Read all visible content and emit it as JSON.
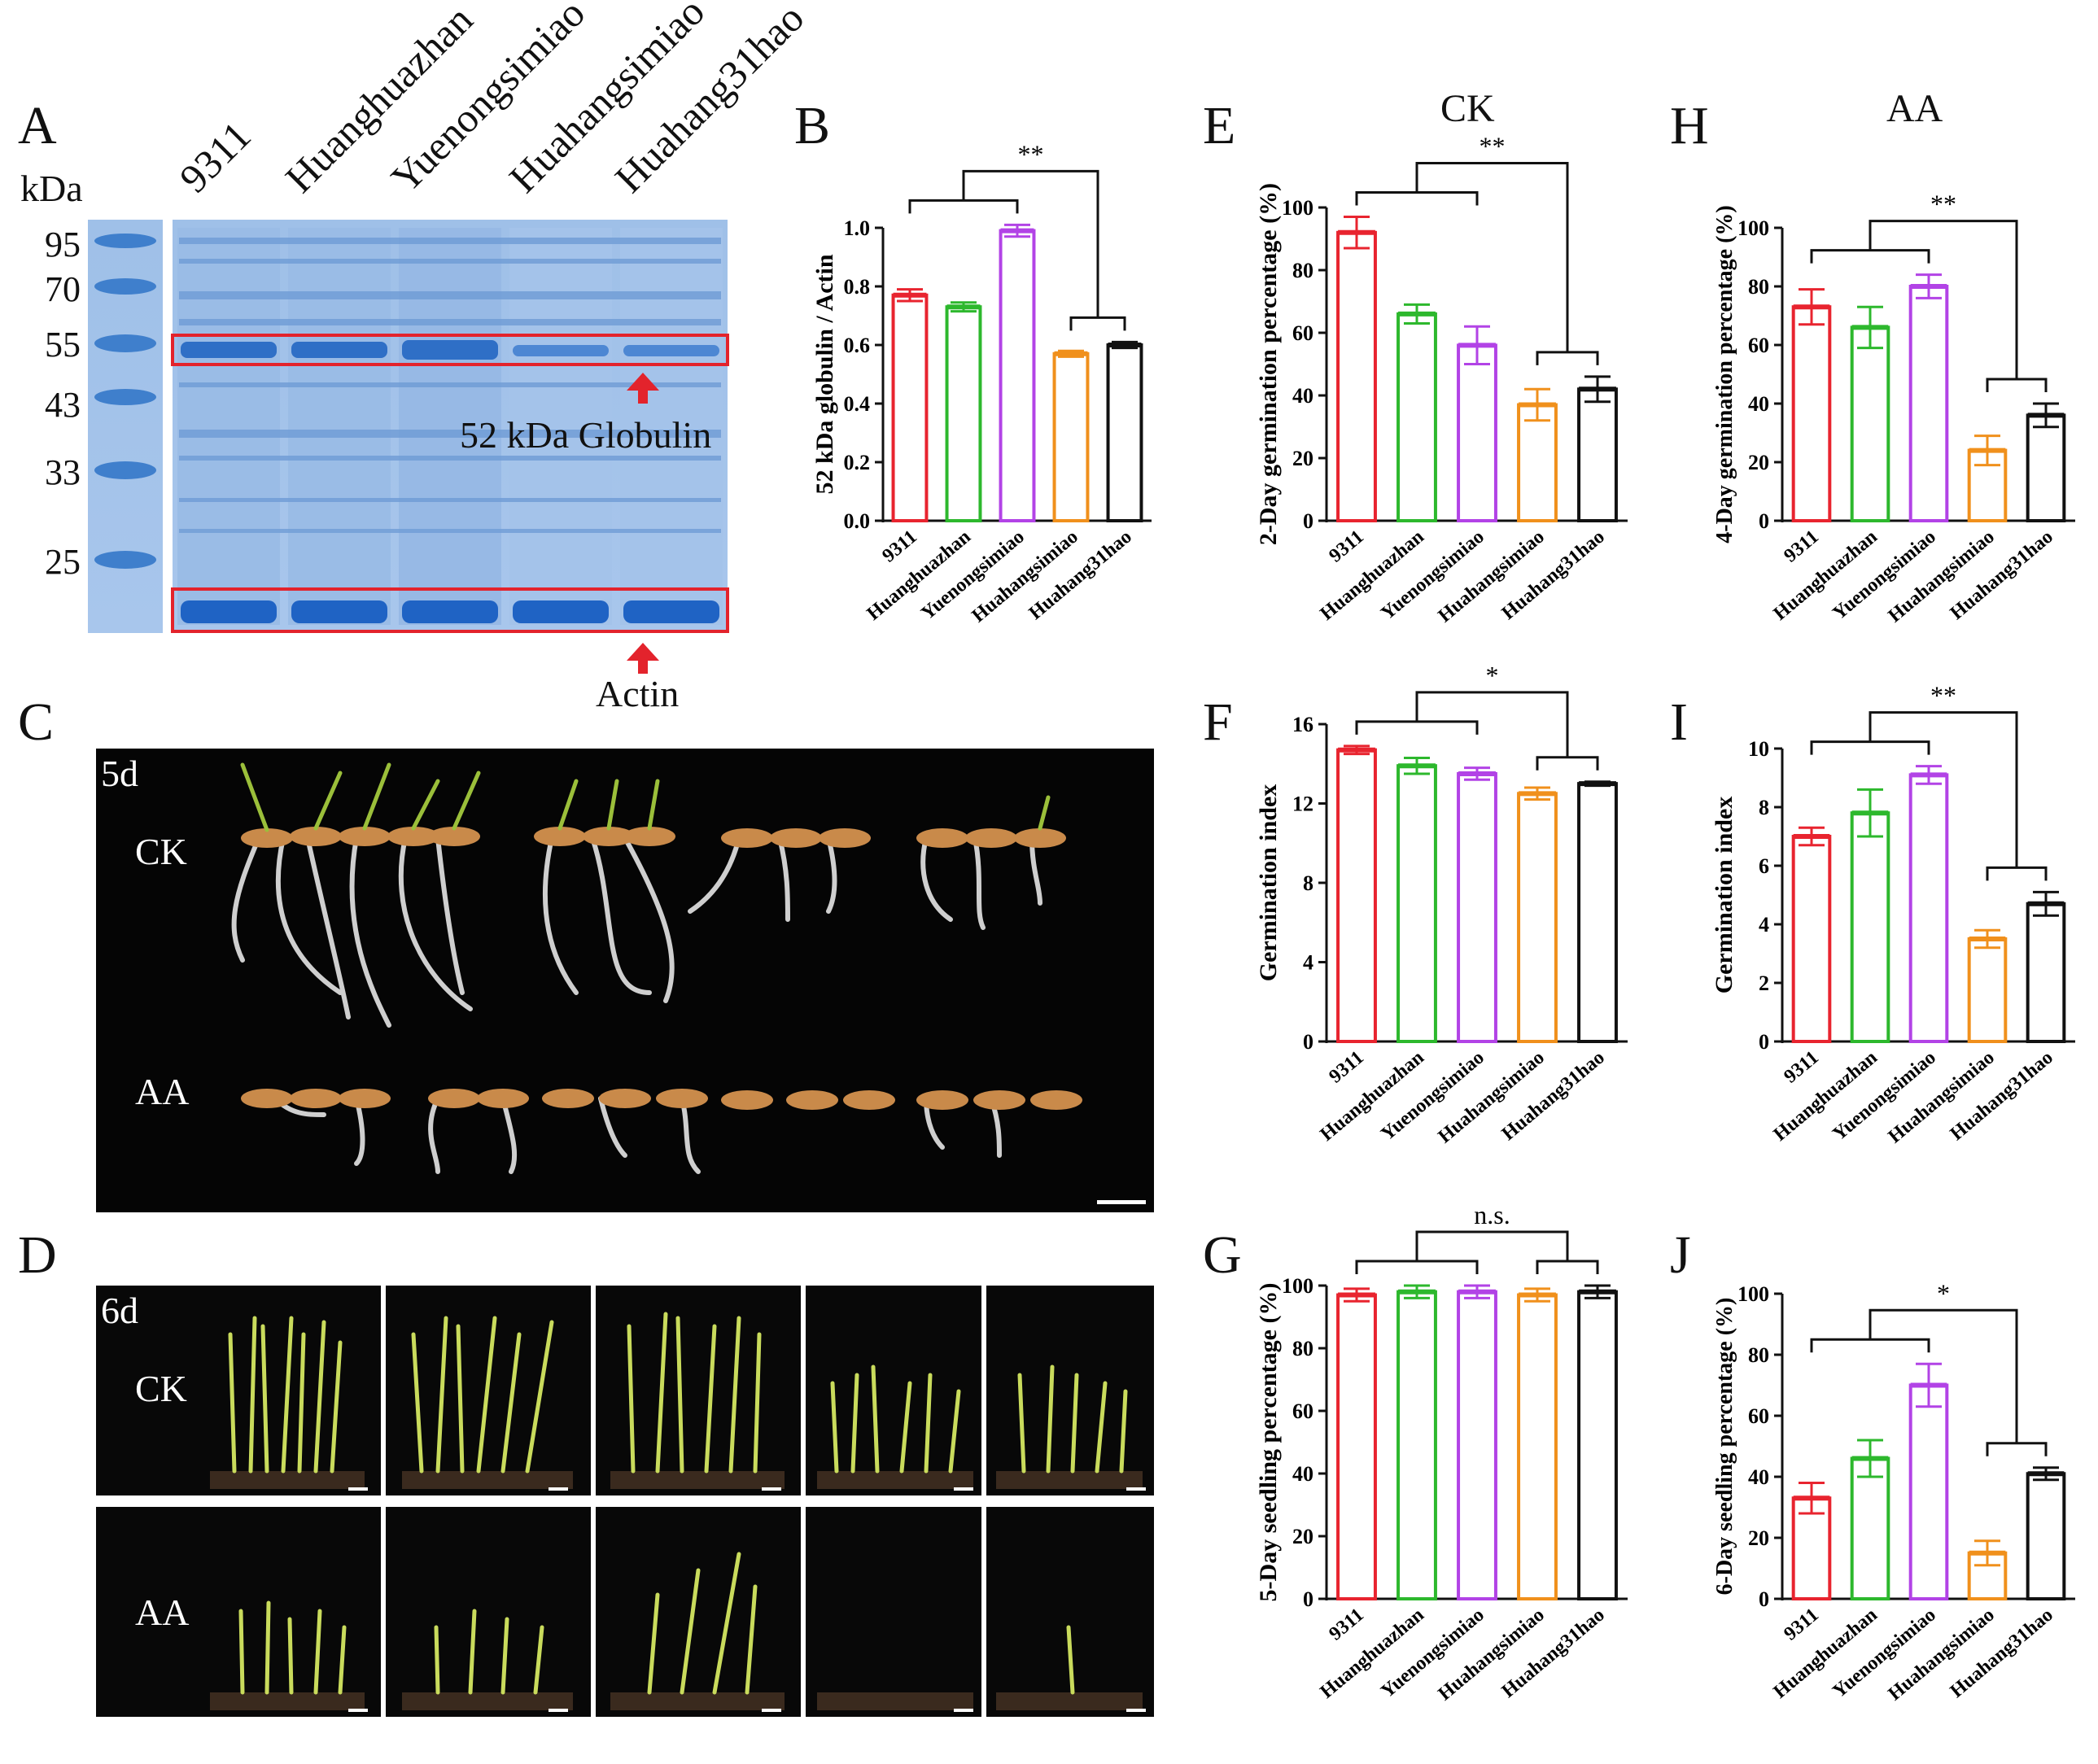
{
  "panel_letters": {
    "A": "A",
    "B": "B",
    "C": "C",
    "D": "D",
    "E": "E",
    "F": "F",
    "G": "G",
    "H": "H",
    "I": "I",
    "J": "J"
  },
  "gel": {
    "unit": "kDa",
    "markers": [
      "95",
      "70",
      "55",
      "43",
      "33",
      "25"
    ],
    "lanes": [
      "9311",
      "Huanghuazhan",
      "Yuenongsimiao",
      "Huahangsimiao",
      "Huahang31hao"
    ],
    "globulin_label": "52 kDa Globulin",
    "actin_label": "Actin"
  },
  "photos": {
    "c_day": "5d",
    "d_day": "6d",
    "ck": "CK",
    "aa": "AA"
  },
  "titles": {
    "ck": "CK",
    "aa": "AA"
  },
  "colors": {
    "9311": "#e8242f",
    "Huanghuazhan": "#2db82d",
    "Yuenongsimiao": "#b243e6",
    "Huahangsimiao": "#f0901c",
    "Huahang31hao": "#111111"
  },
  "chart_data": [
    {
      "id": "B",
      "type": "bar",
      "ylabel": "52 kDa globulin / Actin",
      "ylim": [
        0,
        1.0
      ],
      "yticks": [
        "0.0",
        "0.2",
        "0.4",
        "0.6",
        "0.8",
        "1.0"
      ],
      "categories": [
        "9311",
        "Huanghuazhan",
        "Yuenongsimiao",
        "Huahangsimiao",
        "Huahang31hao"
      ],
      "values": [
        0.77,
        0.73,
        0.99,
        0.57,
        0.6
      ],
      "errors": [
        0.02,
        0.015,
        0.02,
        0.01,
        0.01
      ],
      "sig": "**"
    },
    {
      "id": "E",
      "type": "bar",
      "ylabel": "2-Day germination percentage (%)",
      "ylim": [
        0,
        100
      ],
      "yticks": [
        "0",
        "20",
        "40",
        "60",
        "80",
        "100"
      ],
      "categories": [
        "9311",
        "Huanghuazhan",
        "Yuenongsimiao",
        "Huahangsimiao",
        "Huahang31hao"
      ],
      "values": [
        92,
        66,
        56,
        37,
        42
      ],
      "errors": [
        5,
        3,
        6,
        5,
        4
      ],
      "sig": "**"
    },
    {
      "id": "H",
      "type": "bar",
      "ylabel": "4-Day germination percentage (%)",
      "ylim": [
        0,
        100
      ],
      "yticks": [
        "0",
        "20",
        "40",
        "60",
        "80",
        "100"
      ],
      "categories": [
        "9311",
        "Huanghuazhan",
        "Yuenongsimiao",
        "Huahangsimiao",
        "Huahang31hao"
      ],
      "values": [
        73,
        66,
        80,
        24,
        36
      ],
      "errors": [
        6,
        7,
        4,
        5,
        4
      ],
      "sig": "**"
    },
    {
      "id": "F",
      "type": "bar",
      "ylabel": "Germination index",
      "ylim": [
        0,
        16
      ],
      "yticks": [
        "0",
        "4",
        "8",
        "12",
        "16"
      ],
      "categories": [
        "9311",
        "Huanghuazhan",
        "Yuenongsimiao",
        "Huahangsimiao",
        "Huahang31hao"
      ],
      "values": [
        14.7,
        13.9,
        13.5,
        12.5,
        13.0
      ],
      "errors": [
        0.2,
        0.4,
        0.3,
        0.3,
        0.1
      ],
      "sig": "*"
    },
    {
      "id": "I",
      "type": "bar",
      "ylabel": "Germination index",
      "ylim": [
        0,
        10
      ],
      "yticks": [
        "0",
        "2",
        "4",
        "6",
        "8",
        "10"
      ],
      "categories": [
        "9311",
        "Huanghuazhan",
        "Yuenongsimiao",
        "Huahangsimiao",
        "Huahang31hao"
      ],
      "values": [
        7.0,
        7.8,
        9.1,
        3.5,
        4.7
      ],
      "errors": [
        0.3,
        0.8,
        0.3,
        0.3,
        0.4
      ],
      "sig": "**"
    },
    {
      "id": "G",
      "type": "bar",
      "ylabel": "5-Day seedling percentage (%)",
      "ylim": [
        0,
        100
      ],
      "yticks": [
        "0",
        "20",
        "40",
        "60",
        "80",
        "100"
      ],
      "categories": [
        "9311",
        "Huanghuazhan",
        "Yuenongsimiao",
        "Huahangsimiao",
        "Huahang31hao"
      ],
      "values": [
        97,
        98,
        98,
        97,
        98
      ],
      "errors": [
        2,
        2,
        2,
        2,
        2
      ],
      "sig": "n.s."
    },
    {
      "id": "J",
      "type": "bar",
      "ylabel": "6-Day seedling percentage (%)",
      "ylim": [
        0,
        100
      ],
      "yticks": [
        "0",
        "20",
        "40",
        "60",
        "80",
        "100"
      ],
      "categories": [
        "9311",
        "Huanghuazhan",
        "Yuenongsimiao",
        "Huahangsimiao",
        "Huahang31hao"
      ],
      "values": [
        33,
        46,
        70,
        15,
        41
      ],
      "errors": [
        5,
        6,
        7,
        4,
        2
      ],
      "sig": "*"
    }
  ]
}
